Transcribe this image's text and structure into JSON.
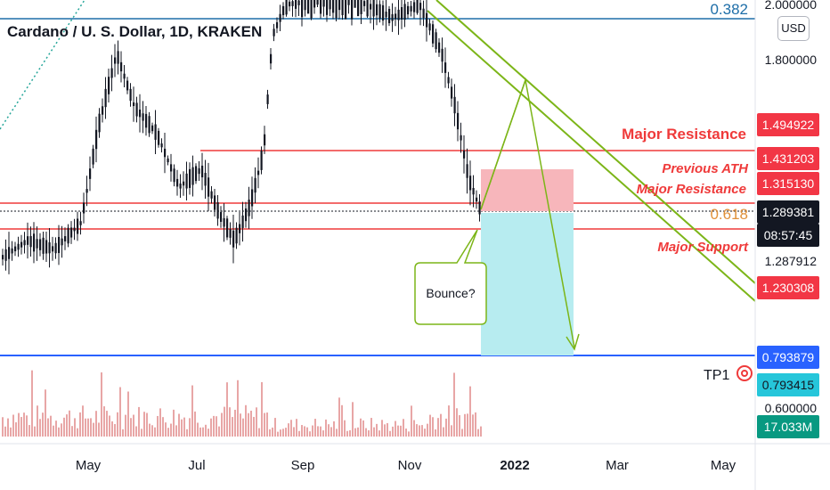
{
  "header": {
    "title": "Cardano / U. S. Dollar, 1D, KRAKEN",
    "currency_button": "USD"
  },
  "colors": {
    "resistance": "#ef3a3a",
    "support_line": "#2962ff",
    "trendline": "#7cb518",
    "stop_zone": "#f7b6bb",
    "target_zone": "#b7ecf0",
    "fib_382": "#1e6ea8",
    "fib_618": "#e0913a",
    "candle": "#131722",
    "volume": "#e8a6a6"
  },
  "chart_data": {
    "type": "candlestick",
    "title": "Cardano / U. S. Dollar, 1D, KRAKEN",
    "x_axis": {
      "ticks": [
        "May",
        "Jul",
        "Sep",
        "Nov",
        "2022",
        "Mar",
        "May"
      ],
      "bold_tick": "2022"
    },
    "y_axis": {
      "ticks": [
        "2.000000",
        "1.800000",
        "1.287912",
        "0.600000"
      ],
      "scale": "non-linear (log-like)"
    },
    "price_labels": [
      {
        "value": "1.494922",
        "style": "red"
      },
      {
        "value": "1.431203",
        "style": "red"
      },
      {
        "value": "1.315130",
        "style": "red"
      },
      {
        "value": "1.289381",
        "style": "dark"
      },
      {
        "value": "08:57:45",
        "style": "dark"
      },
      {
        "value": "1.230308",
        "style": "red"
      },
      {
        "value": "0.793879",
        "style": "blue"
      },
      {
        "value": "0.793415",
        "style": "cyan"
      },
      {
        "value": "17.033M",
        "style": "green"
      }
    ],
    "horizontal_levels": [
      {
        "label": "Major Resistance",
        "level": 1.494922
      },
      {
        "label": "Previous ATH",
        "level": 1.431203
      },
      {
        "label": "Major Resistance",
        "level": 1.31513
      },
      {
        "label": "Major Support",
        "level": 1.230308
      },
      {
        "label": "TP1",
        "level": 0.793879
      }
    ],
    "fib_levels": [
      {
        "label": "0.382"
      },
      {
        "label": "0.618"
      }
    ],
    "annotations": [
      {
        "type": "callout",
        "text": "Bounce?"
      },
      {
        "type": "descending-channel",
        "text": ""
      },
      {
        "type": "projection-arrow",
        "text": ""
      },
      {
        "type": "short-position",
        "stop_zone": "1.431203-1.289381",
        "target": "0.793879"
      }
    ],
    "candles": {
      "first_month": "Apr",
      "last_month": "Dec",
      "trend": "rally May-Aug to above 2.0, chop Sep-Nov near 2.0, decline into Dec toward 1.29"
    },
    "volume": {
      "last_value": "17.033M"
    }
  }
}
